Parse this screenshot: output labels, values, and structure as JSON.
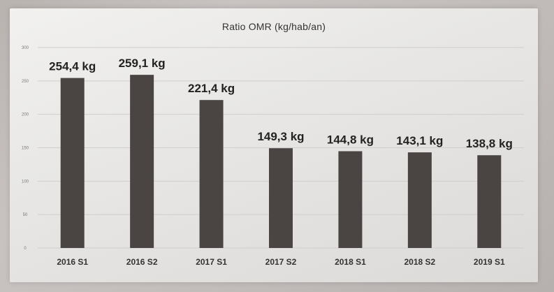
{
  "chart_data": {
    "type": "bar",
    "title": "Ratio OMR (kg/hab/an)",
    "categories": [
      "2016 S1",
      "2016 S2",
      "2017 S1",
      "2017 S2",
      "2018 S1",
      "2018 S2",
      "2019 S1"
    ],
    "values": [
      254.4,
      259.1,
      221.4,
      149.3,
      144.8,
      143.1,
      138.8
    ],
    "value_labels": [
      "254,4 kg",
      "259,1 kg",
      "221,4 kg",
      "149,3 kg",
      "144,8 kg",
      "143,1 kg",
      "138,8 kg"
    ],
    "yticks": [
      0,
      50,
      100,
      150,
      200,
      250,
      300
    ],
    "ytick_labels": [
      "0",
      "50",
      "100",
      "150",
      "200",
      "250",
      "300"
    ],
    "ylim": [
      0,
      300
    ],
    "grid": true,
    "bar_color": "#4a4443",
    "grid_color": "#d0cecc"
  }
}
